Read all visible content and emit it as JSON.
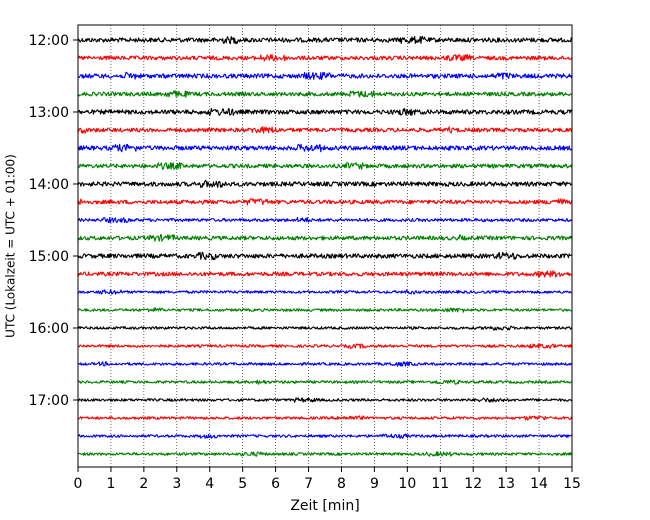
{
  "chart_data": {
    "type": "line",
    "title": "",
    "xlabel": "Zeit  [min]",
    "ylabel": "UTC (Lokalzeit = UTC + 01:00)",
    "xlim": [
      0,
      15
    ],
    "x_ticks": [
      "0",
      "1",
      "2",
      "3",
      "4",
      "5",
      "6",
      "7",
      "8",
      "9",
      "10",
      "11",
      "12",
      "13",
      "14",
      "15"
    ],
    "y_ticks": [
      "12:00",
      "13:00",
      "14:00",
      "15:00",
      "16:00",
      "17:00"
    ],
    "y_tick_rows": [
      0,
      4,
      8,
      12,
      16,
      20
    ],
    "row_interval_min": 15,
    "grid": "vertical-dotted",
    "color_cycle": [
      "#000000",
      "#ff0000",
      "#0000ff",
      "#008000"
    ],
    "rows": [
      {
        "start": "12:00",
        "amplitude": 1.0
      },
      {
        "start": "12:15",
        "amplitude": 0.9
      },
      {
        "start": "12:30",
        "amplitude": 1.0
      },
      {
        "start": "12:45",
        "amplitude": 0.9
      },
      {
        "start": "13:00",
        "amplitude": 1.0
      },
      {
        "start": "13:15",
        "amplitude": 0.9
      },
      {
        "start": "13:30",
        "amplitude": 1.0
      },
      {
        "start": "13:45",
        "amplitude": 0.9
      },
      {
        "start": "14:00",
        "amplitude": 1.0
      },
      {
        "start": "14:15",
        "amplitude": 0.9
      },
      {
        "start": "14:30",
        "amplitude": 0.7
      },
      {
        "start": "14:45",
        "amplitude": 0.9
      },
      {
        "start": "15:00",
        "amplitude": 1.0
      },
      {
        "start": "15:15",
        "amplitude": 0.9
      },
      {
        "start": "15:30",
        "amplitude": 0.6
      },
      {
        "start": "15:45",
        "amplitude": 0.6
      },
      {
        "start": "16:00",
        "amplitude": 0.6
      },
      {
        "start": "16:15",
        "amplitude": 0.6
      },
      {
        "start": "16:30",
        "amplitude": 0.6
      },
      {
        "start": "16:45",
        "amplitude": 0.6
      },
      {
        "start": "17:00",
        "amplitude": 0.6
      },
      {
        "start": "17:15",
        "amplitude": 0.6
      },
      {
        "start": "17:30",
        "amplitude": 0.6
      },
      {
        "start": "17:45",
        "amplitude": 0.6
      }
    ]
  }
}
